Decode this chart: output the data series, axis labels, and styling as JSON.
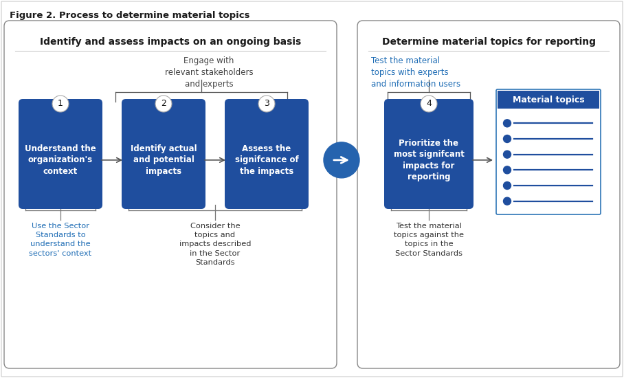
{
  "title": "Figure 2. Process to determine material topics",
  "left_box_title": "Identify and assess impacts on an ongoing basis",
  "right_box_title": "Determine material topics for reporting",
  "steps": [
    {
      "num": "1",
      "text": "Understand the\norganization's\ncontext"
    },
    {
      "num": "2",
      "text": "Identify actual\nand potential\nimpacts"
    },
    {
      "num": "3",
      "text": "Assess the\nsignifcance of\nthe impacts"
    },
    {
      "num": "4",
      "text": "Prioritize the\nmost signifcant\nimpacts for\nreporting"
    }
  ],
  "bottom_notes": [
    "Use the Sector\nStandards to\nunderstand the\nsectors' context",
    "Consider the\ntopics and\nimpacts described\nin the Sector\nStandards",
    "",
    "Test the material\ntopics against the\ntopics in the\nSector Standards"
  ],
  "engage_text": "Engage with\nrelevant stakeholders\nand experts",
  "test_top_text": "Test the material\ntopics with experts\nand information users",
  "material_topics_title": "Material topics",
  "num_bullets": 6,
  "dark_blue": "#1F4E9E",
  "medium_blue": "#2563AE",
  "light_blue_border": "#2E75B6",
  "outer_border": "#888888",
  "text_dark": "#1a1a1a",
  "text_blue": "#1F6DB5",
  "background": "#FFFFFF",
  "outer_bg": "#F5F5F5",
  "title_fontsize": 9.5,
  "section_title_fontsize": 10,
  "body_fontsize": 8.5,
  "step_fontsize": 8.5,
  "number_fontsize": 9
}
